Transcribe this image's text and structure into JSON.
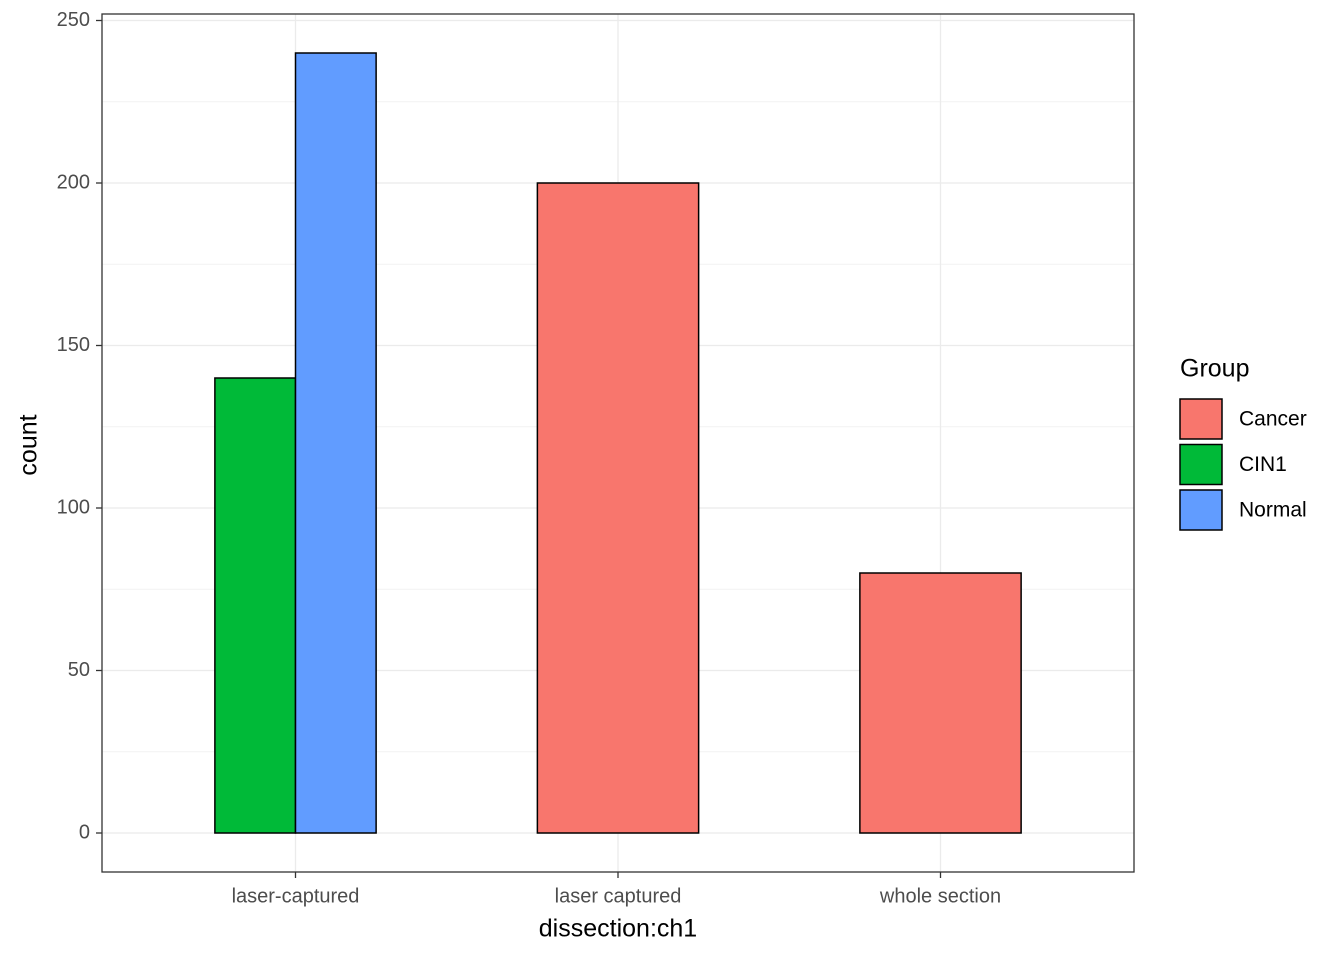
{
  "chart_data": {
    "type": "bar",
    "x_label": "dissection:ch1",
    "y_label": "count",
    "categories": [
      "laser-captured",
      "laser captured",
      "whole section"
    ],
    "series": [
      {
        "name": "Cancer",
        "color": "#F8766D",
        "values": [
          null,
          200,
          80
        ]
      },
      {
        "name": "CIN1",
        "color": "#00BA38",
        "values": [
          140,
          null,
          null
        ]
      },
      {
        "name": "Normal",
        "color": "#619CFF",
        "values": [
          240,
          null,
          null
        ]
      }
    ],
    "legend_title": "Group",
    "legend_position": "right",
    "ylim": [
      -12,
      252
    ],
    "yticks": [
      0,
      50,
      100,
      150,
      200,
      250
    ],
    "grid": true
  }
}
